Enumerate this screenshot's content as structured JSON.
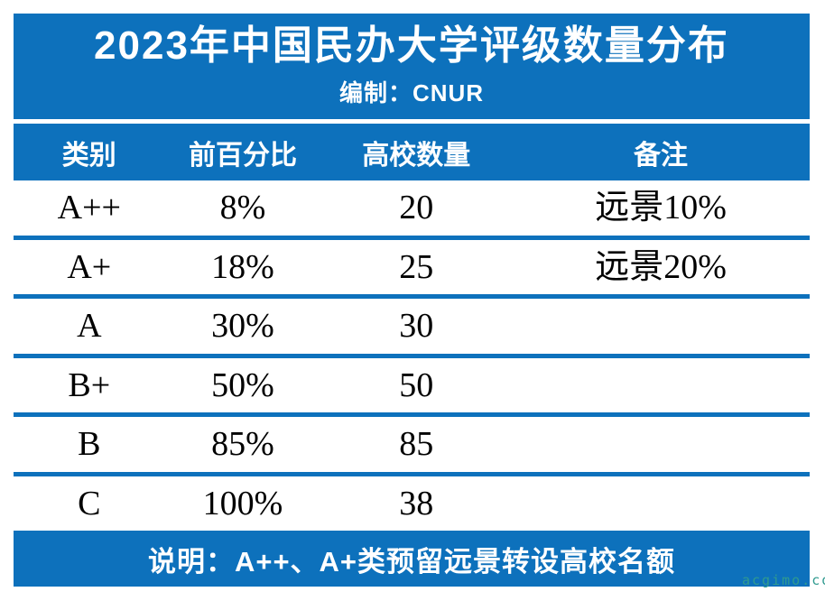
{
  "header": {
    "title": "2023年中国民办大学评级数量分布",
    "subtitle": "编制：CNUR"
  },
  "table": {
    "headers": [
      "类别",
      "前百分比",
      "高校数量",
      "备注"
    ],
    "rows": [
      {
        "category": "A++",
        "percentile": "8%",
        "count": "20",
        "note": "远景10%"
      },
      {
        "category": "A+",
        "percentile": "18%",
        "count": "25",
        "note": "远景20%"
      },
      {
        "category": "A",
        "percentile": "30%",
        "count": "30",
        "note": ""
      },
      {
        "category": "B+",
        "percentile": "50%",
        "count": "50",
        "note": ""
      },
      {
        "category": "B",
        "percentile": "85%",
        "count": "85",
        "note": ""
      },
      {
        "category": "C",
        "percentile": "100%",
        "count": "38",
        "note": ""
      }
    ]
  },
  "footer": {
    "note": "说明：A++、A+类预留远景转设高校名额"
  },
  "watermark": {
    "text": "acgimo.co"
  },
  "colors": {
    "primary_blue": "#0d71bc",
    "text_black": "#000000",
    "text_white": "#ffffff",
    "watermark_teal": "#2f9a8f"
  },
  "chart_data": {
    "type": "table",
    "title": "2023年中国民办大学评级数量分布",
    "subtitle": "编制：CNUR",
    "columns": [
      "类别",
      "前百分比",
      "高校数量",
      "备注"
    ],
    "rows": [
      [
        "A++",
        "8%",
        "20",
        "远景10%"
      ],
      [
        "A+",
        "18%",
        "25",
        "远景20%"
      ],
      [
        "A",
        "30%",
        "30",
        ""
      ],
      [
        "B+",
        "50%",
        "50",
        ""
      ],
      [
        "B",
        "85%",
        "85",
        ""
      ],
      [
        "C",
        "100%",
        "38",
        ""
      ]
    ],
    "note": "说明：A++、A+类预留远景转设高校名额",
    "layout_hints": {
      "header_style": "white bold text on blue bar",
      "row_separators": "thick blue horizontal rules",
      "footer": "blue note bar"
    }
  }
}
